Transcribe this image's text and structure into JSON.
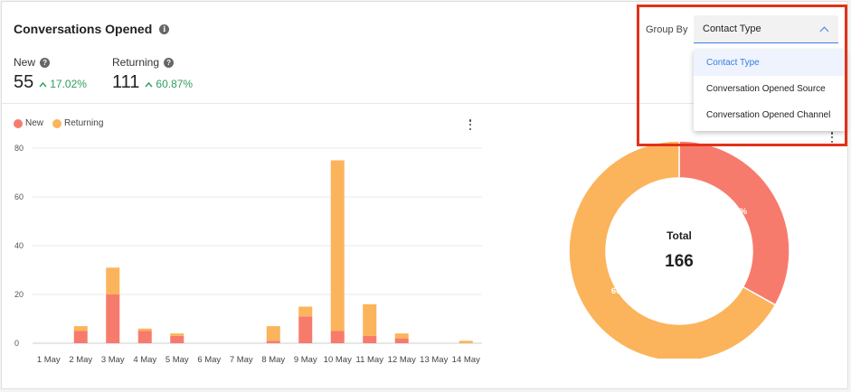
{
  "header": {
    "title": "Conversations Opened",
    "info_icon": "i"
  },
  "stats": {
    "new": {
      "label": "New",
      "value": "55",
      "change": "17.02%"
    },
    "returning": {
      "label": "Returning",
      "value": "111",
      "change": "60.87%"
    }
  },
  "group_by": {
    "label": "Group By",
    "selected": "Contact Type",
    "options": [
      "Contact Type",
      "Conversation Opened Source",
      "Conversation Opened Channel"
    ]
  },
  "colors": {
    "new": "#f77b6c",
    "returning": "#fbb45b",
    "accent": "#3b7de0",
    "positive": "#2e9e5b",
    "highlight": "#e2321a"
  },
  "chart_data": [
    {
      "type": "bar",
      "stacked": true,
      "categories": [
        "1 May",
        "2 May",
        "3 May",
        "4 May",
        "5 May",
        "6 May",
        "7 May",
        "8 May",
        "9 May",
        "10 May",
        "11 May",
        "12 May",
        "13 May",
        "14 May"
      ],
      "series": [
        {
          "name": "New",
          "values": [
            0,
            5,
            20,
            5,
            3,
            0,
            0,
            1,
            11,
            5,
            3,
            2,
            0,
            0
          ]
        },
        {
          "name": "Returning",
          "values": [
            0,
            2,
            11,
            1,
            1,
            0,
            0,
            6,
            4,
            70,
            13,
            2,
            0,
            1
          ]
        }
      ],
      "ylim": [
        0,
        80
      ],
      "yticks": [
        0,
        20,
        40,
        60,
        80
      ],
      "grid": true,
      "legend": "top-left"
    },
    {
      "type": "pie",
      "donut": true,
      "center_label": "Total",
      "center_value": "166",
      "slices": [
        {
          "name": "New",
          "value": 55,
          "label": "33.1%"
        },
        {
          "name": "Returning",
          "value": 111,
          "label": "66.9%"
        }
      ]
    }
  ]
}
